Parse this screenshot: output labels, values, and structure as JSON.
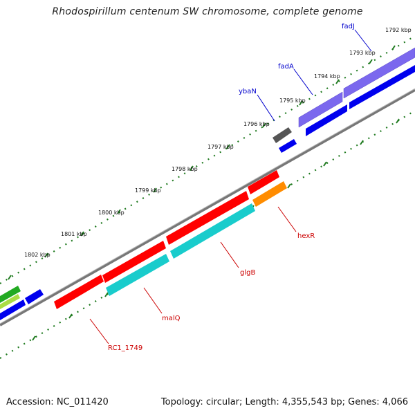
{
  "title": "Rhodospirillum centenum SW chromosome, complete genome",
  "footer": {
    "accession": "Accession: NC_011420",
    "topology": "Topology: circular; Length: 4,355,543 bp; Genes: 4,066"
  },
  "ticks": [
    "1792 kbp",
    "1793 kbp",
    "1794 kbp",
    "1795 kbp",
    "1796 kbp",
    "1797 kbp",
    "1798 kbp",
    "1799 kbp",
    "1800 kbp",
    "1801 kbp",
    "1802 kbp"
  ],
  "genes_top": [
    {
      "label": "fadJ",
      "color": "#0000cc"
    },
    {
      "label": "fadA",
      "color": "#0000cc"
    },
    {
      "label": "ybaN",
      "color": "#0000cc"
    }
  ],
  "genes_bottom": [
    {
      "label": "hexR",
      "color": "#cc0000"
    },
    {
      "label": "glgB",
      "color": "#cc0000"
    },
    {
      "label": "malQ",
      "color": "#cc0000"
    },
    {
      "label": "RC1_1749",
      "color": "#cc0000"
    }
  ],
  "colors": {
    "red": "#ff0000",
    "cyan": "#19cccc",
    "orange": "#ff8c00",
    "blue": "#0000ee",
    "purple": "#7b68ee",
    "gray": "#555555",
    "green": "#22aa22",
    "lightgreen": "#aadd44",
    "backbone": "#777777",
    "tickgreen": "#1f7a1f"
  }
}
